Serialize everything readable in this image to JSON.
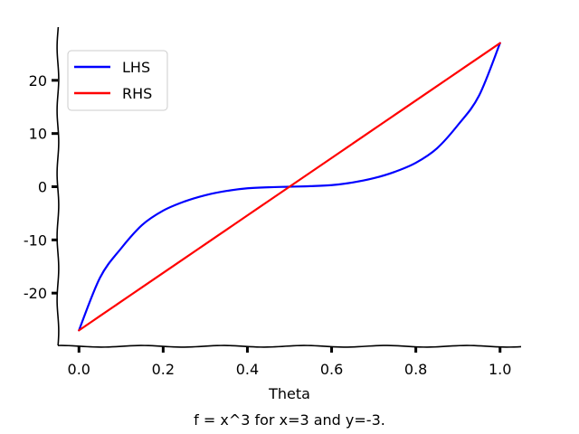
{
  "chart_data": {
    "type": "line",
    "xlabel": "Theta",
    "ylabel": "",
    "caption": "f = x^3 for x=3 and y=-3.",
    "xlim": [
      -0.05,
      1.05
    ],
    "ylim": [
      -30,
      30
    ],
    "xticks": [
      0.0,
      0.2,
      0.4,
      0.6,
      0.8,
      1.0
    ],
    "xtick_labels": [
      "0.0",
      "0.2",
      "0.4",
      "0.6",
      "0.8",
      "1.0"
    ],
    "yticks": [
      -20,
      -10,
      0,
      10,
      20
    ],
    "ytick_labels": [
      "-20",
      "-10",
      "0",
      "10",
      "20"
    ],
    "grid": false,
    "legend_position": "top-left",
    "series": [
      {
        "name": "LHS",
        "color": "#0000ff",
        "x": [
          0.0,
          0.05,
          0.1,
          0.15,
          0.2,
          0.25,
          0.3,
          0.35,
          0.4,
          0.45,
          0.5,
          0.55,
          0.6,
          0.65,
          0.7,
          0.75,
          0.8,
          0.85,
          0.9,
          0.95,
          1.0
        ],
        "y": [
          -27.0,
          -17.1,
          -11.6,
          -7.2,
          -4.5,
          -2.8,
          -1.6,
          -0.8,
          -0.3,
          -0.1,
          0.0,
          0.1,
          0.3,
          0.8,
          1.6,
          2.8,
          4.5,
          7.2,
          11.6,
          17.1,
          27.0
        ]
      },
      {
        "name": "RHS",
        "color": "#ff0000",
        "x": [
          0.0,
          0.05,
          0.1,
          0.15,
          0.2,
          0.25,
          0.3,
          0.35,
          0.4,
          0.45,
          0.5,
          0.55,
          0.6,
          0.65,
          0.7,
          0.75,
          0.8,
          0.85,
          0.9,
          0.95,
          1.0
        ],
        "y": [
          -27.0,
          -24.3,
          -21.6,
          -18.9,
          -16.2,
          -13.5,
          -10.8,
          -8.1,
          -5.4,
          -2.7,
          0.0,
          2.7,
          5.4,
          8.1,
          10.8,
          13.5,
          16.2,
          18.9,
          21.6,
          24.3,
          27.0
        ]
      }
    ]
  }
}
